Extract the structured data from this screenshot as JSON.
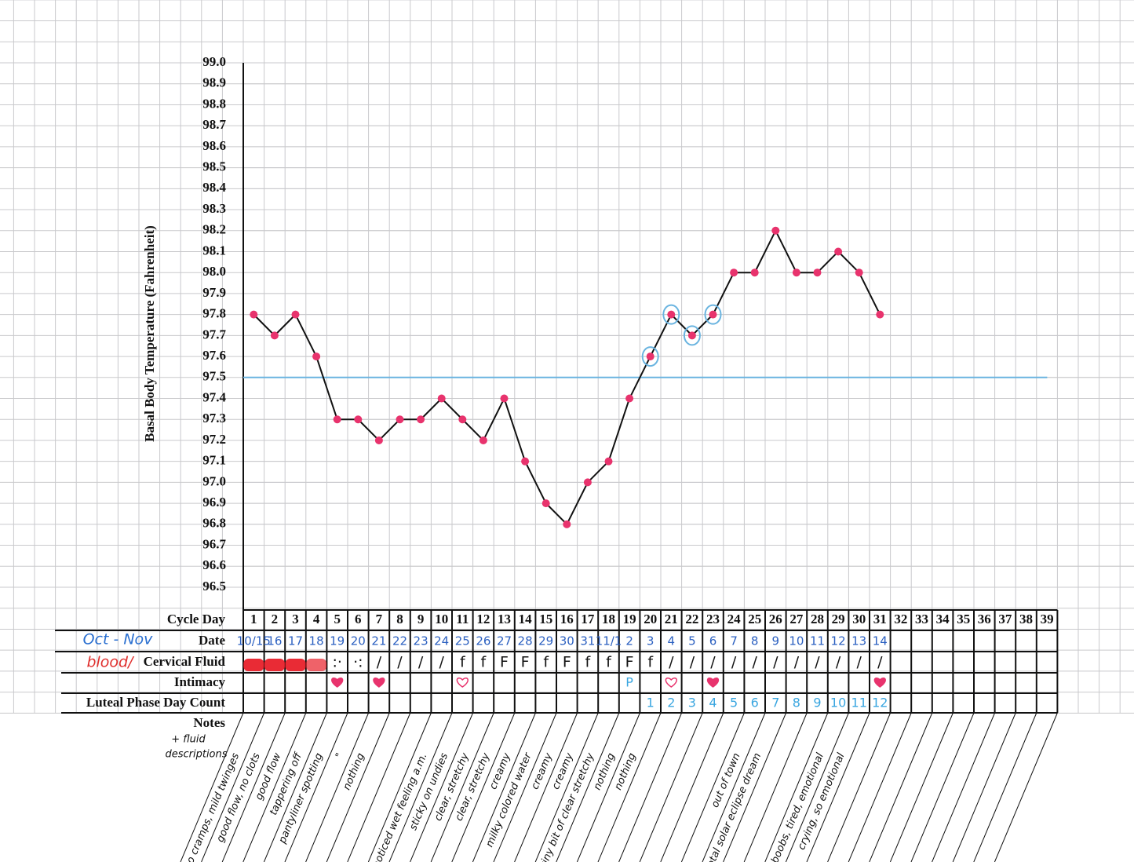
{
  "chart_data": {
    "type": "line",
    "y_label": "Basal Body Temperature (Fahrenheit)",
    "x_label": "Cycle Day",
    "categories": [
      1,
      2,
      3,
      4,
      5,
      6,
      7,
      8,
      9,
      10,
      11,
      12,
      13,
      14,
      15,
      16,
      17,
      18,
      19,
      20,
      21,
      22,
      23,
      24,
      25,
      26,
      27,
      28,
      29,
      30,
      31,
      32,
      33,
      34,
      35,
      36,
      37,
      38,
      39
    ],
    "series": [
      {
        "color": "#e8336d",
        "values": [
          97.8,
          97.7,
          97.8,
          97.6,
          97.3,
          97.3,
          97.2,
          97.3,
          97.3,
          97.4,
          97.3,
          97.2,
          97.4,
          97.1,
          96.9,
          96.8,
          97.0,
          97.1,
          97.4,
          97.6,
          97.8,
          97.7,
          97.8,
          98.0,
          98.0,
          98.2,
          98.0,
          98.0,
          98.1,
          98.0,
          97.8,
          null,
          null,
          null,
          null,
          null,
          null,
          null,
          null
        ]
      }
    ],
    "ylim": [
      96.5,
      99.0
    ],
    "yticks": [
      {
        "value": 99.0,
        "label": "99.0"
      },
      98.9,
      98.8,
      98.7,
      98.6,
      98.5,
      98.4,
      98.3,
      98.2,
      98.1,
      {
        "value": 98.0,
        "label": "98.0"
      },
      97.9,
      97.8,
      97.7,
      97.6,
      97.5,
      97.4,
      97.3,
      97.2,
      97.1,
      {
        "value": 97.0,
        "label": "97.0"
      },
      96.9,
      96.8,
      96.7,
      96.6,
      96.5
    ],
    "coverline": 97.5,
    "coverline_color": "#6ab4e0",
    "circled": [
      20,
      21,
      22,
      23
    ]
  },
  "table": {
    "date": {
      "label": "Date",
      "handnote": "Oct - Nov",
      "cells": [
        "10/15",
        "16",
        "17",
        "18",
        "19",
        "20",
        "21",
        "22",
        "23",
        "24",
        "25",
        "26",
        "27",
        "28",
        "29",
        "30",
        "31",
        "11/1",
        "2",
        "3",
        "4",
        "5",
        "6",
        "7",
        "8",
        "9",
        "10",
        "11",
        "12",
        "13",
        "14",
        null,
        null,
        null,
        null,
        null,
        null,
        null,
        null
      ]
    },
    "cervical_fluid": {
      "label": "Cervical Fluid",
      "handnote": "blood/",
      "blood_days": [
        1,
        2,
        3,
        4
      ],
      "cells": [
        null,
        null,
        null,
        null,
        ":·",
        "·:",
        "/",
        "/",
        "/",
        "/",
        "f",
        "f",
        "F",
        "F",
        "f",
        "F",
        "f",
        "f",
        "F",
        "f",
        "/",
        "/",
        "/",
        "/",
        "/",
        "/",
        "/",
        "/",
        "/",
        "/",
        "/",
        null,
        null,
        null,
        null,
        null,
        null,
        null,
        null
      ]
    },
    "intimacy": {
      "label": "Intimacy",
      "hearts": [
        {
          "day": 5,
          "filled": true
        },
        {
          "day": 7,
          "filled": true
        },
        {
          "day": 11,
          "filled": false
        },
        {
          "day": 21,
          "filled": false
        },
        {
          "day": 23,
          "filled": true
        },
        {
          "day": 31,
          "filled": true
        }
      ],
      "cells": [
        null,
        null,
        null,
        null,
        null,
        null,
        null,
        null,
        null,
        null,
        null,
        null,
        null,
        null,
        null,
        null,
        null,
        null,
        "P",
        null,
        null,
        null,
        null,
        null,
        null,
        null,
        null,
        null,
        null,
        null,
        null,
        null,
        null,
        null,
        null,
        null,
        null,
        null,
        null
      ]
    },
    "luteal": {
      "label": "Luteal Phase Day Count",
      "cells": [
        null,
        null,
        null,
        null,
        null,
        null,
        null,
        null,
        null,
        null,
        null,
        null,
        null,
        null,
        null,
        null,
        null,
        null,
        null,
        1,
        2,
        3,
        4,
        5,
        6,
        7,
        8,
        9,
        10,
        11,
        12,
        null,
        null,
        null,
        null,
        null,
        null,
        null,
        null
      ]
    },
    "notes": {
      "label": "Notes",
      "sublabel": [
        "+ fluid",
        "descriptions"
      ],
      "cells": [
        "no cramps, mild twinges",
        "good flow, no clots",
        "good flow",
        "tappering off",
        "pantyliner spotting",
        "\"",
        "nothing",
        null,
        null,
        "noticed wet feeling a.m.",
        "sticky on undies",
        "clear, stretchy",
        "clear, stretchy",
        "creamy",
        "milky colored water",
        "creamy",
        "creamy",
        "tiny bit of clear stretchy",
        "nothing",
        "nothing",
        null,
        null,
        null,
        null,
        "out of town",
        "total solar eclipse dream",
        null,
        null,
        "sore boobs, tired, emotional",
        "crying, so emotional",
        null,
        null,
        null,
        null,
        null,
        null,
        null,
        null,
        null
      ]
    }
  }
}
